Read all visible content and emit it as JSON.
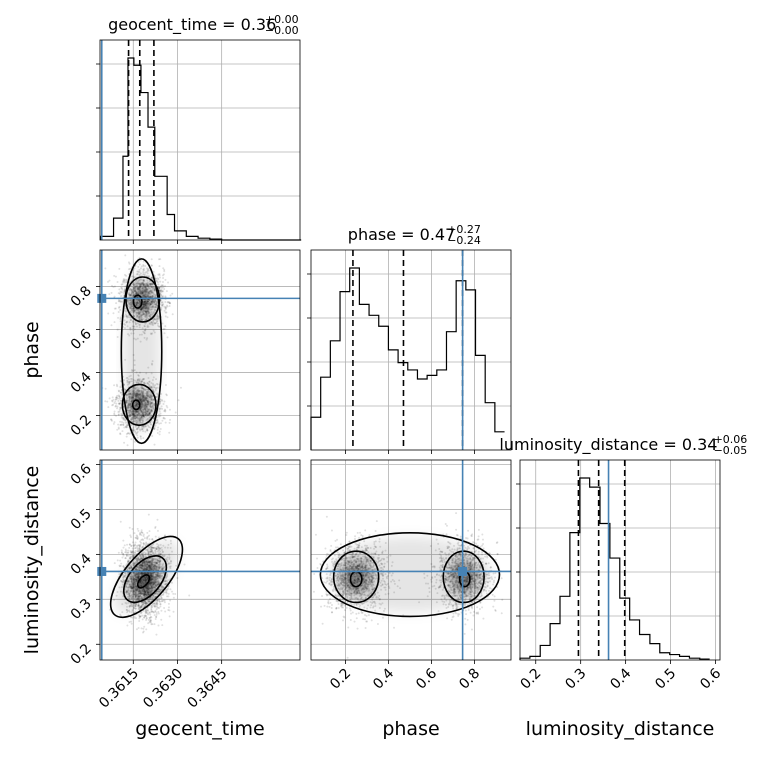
{
  "chart_data": {
    "type": "corner",
    "parameters": [
      "geocent_time",
      "phase",
      "luminosity_distance"
    ],
    "titles": [
      {
        "name": "geocent_time",
        "median": "0.36",
        "plus": "+0.00",
        "minus": "−0.00"
      },
      {
        "name": "phase",
        "median": "0.47",
        "plus": "+0.27",
        "minus": "−0.24"
      },
      {
        "name": "luminosity_distance",
        "median": "0.34",
        "plus": "+0.06",
        "minus": "−0.05"
      }
    ],
    "axis_labels": [
      "geocent_time",
      "phase",
      "luminosity_distance"
    ],
    "ranges": [
      [
        0.36037,
        0.36716
      ],
      [
        0.04,
        0.97
      ],
      [
        0.165,
        0.61
      ]
    ],
    "ticks": {
      "geocent_time": [
        "0.3615",
        "0.3630",
        "0.3645"
      ],
      "phase": [
        "0.2",
        "0.4",
        "0.6",
        "0.8"
      ],
      "luminosity_distance": [
        "0.2",
        "0.3",
        "0.4",
        "0.5",
        "0.6"
      ]
    },
    "tick_values": {
      "geocent_time": [
        0.3615,
        0.363,
        0.3645
      ],
      "phase": [
        0.2,
        0.4,
        0.6,
        0.8
      ],
      "luminosity_distance": [
        0.2,
        0.3,
        0.4,
        0.5,
        0.6
      ]
    },
    "truths": {
      "geocent_time": 0.36043,
      "phase": 0.745,
      "luminosity_distance": 0.362
    },
    "quantiles": {
      "geocent_time": [
        0.36134,
        0.36172,
        0.3622
      ],
      "phase": [
        0.235,
        0.47,
        0.745
      ],
      "luminosity_distance": [
        0.295,
        0.34,
        0.398
      ]
    },
    "histograms": {
      "geocent_time": {
        "bin_edges": [
          0.3604,
          0.36083,
          0.36115,
          0.36132,
          0.36152,
          0.36176,
          0.362,
          0.36223,
          0.36265,
          0.3629,
          0.3633,
          0.3637,
          0.3641,
          0.3645,
          0.3672
        ],
        "counts": [
          2,
          12,
          46,
          100,
          96,
          81,
          62,
          35,
          14,
          5,
          2,
          1,
          0.5,
          0
        ]
      },
      "phase": {
        "bin_edges": [
          0.04,
          0.085,
          0.13,
          0.175,
          0.22,
          0.265,
          0.31,
          0.355,
          0.4,
          0.445,
          0.49,
          0.535,
          0.58,
          0.625,
          0.67,
          0.715,
          0.76,
          0.805,
          0.85,
          0.895,
          0.94
        ],
        "counts": [
          18,
          40,
          60,
          87,
          100,
          80,
          74,
          68,
          55,
          48,
          44,
          39,
          41,
          44,
          65,
          93,
          88,
          52,
          26,
          10
        ]
      },
      "luminosity_distance": {
        "bin_edges": [
          0.165,
          0.187,
          0.21,
          0.232,
          0.254,
          0.276,
          0.298,
          0.32,
          0.343,
          0.365,
          0.387,
          0.409,
          0.431,
          0.454,
          0.476,
          0.498,
          0.52,
          0.542,
          0.565,
          0.587
        ],
        "counts": [
          1,
          2,
          8,
          20,
          35,
          70,
          100,
          95,
          75,
          56,
          34,
          22,
          14,
          9,
          4,
          3,
          2,
          1,
          0.5
        ]
      }
    },
    "grid": true
  }
}
